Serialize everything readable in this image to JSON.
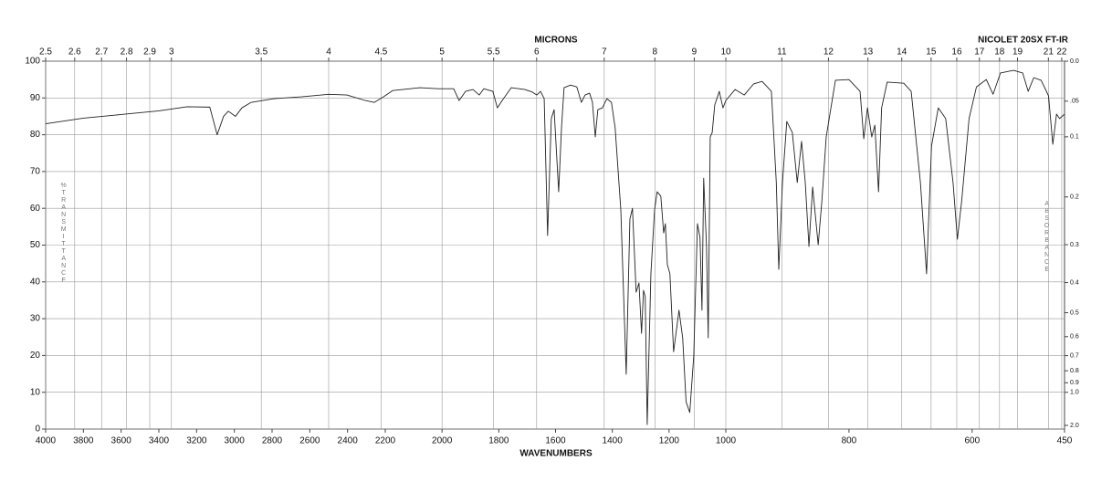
{
  "chart_data": {
    "type": "line",
    "title": "NICOLET 20SX FT-IR",
    "x_label": "WAVENUMBERS",
    "x2_label": "MICRONS",
    "y_label": "%TRANSMITTANCE",
    "y2_label": "ABSORBANCE",
    "color": "#222222",
    "xbreaks": [
      4000,
      2200,
      1000,
      450
    ],
    "xlim": [
      4000,
      450
    ],
    "xticks": [
      4000,
      3800,
      3600,
      3400,
      3200,
      3000,
      2800,
      2600,
      2400,
      2200,
      2000,
      1800,
      1600,
      1400,
      1200,
      1000,
      800,
      600,
      450
    ],
    "x2ticks": [
      2.5,
      2.6,
      2.7,
      2.8,
      2.9,
      3,
      3.5,
      4,
      4.5,
      5,
      5.5,
      6,
      7,
      8,
      9,
      10,
      11,
      12,
      13,
      14,
      15,
      16,
      17,
      18,
      19,
      21,
      22
    ],
    "ylim": [
      0,
      100
    ],
    "yticks": [
      0,
      10,
      20,
      30,
      40,
      50,
      60,
      70,
      80,
      90,
      100
    ],
    "y2ticks": [
      {
        "value": 0,
        "label": "0.0"
      },
      {
        "value": 0.05,
        "label": ".05"
      },
      0.1,
      0.2,
      0.3,
      0.4,
      0.5,
      0.6,
      0.7,
      0.8,
      0.9,
      {
        "value": 1,
        "label": "1.0"
      },
      {
        "value": 2,
        "label": "2.0"
      }
    ],
    "grid": true,
    "x": [
      4000,
      3800,
      3600,
      3400,
      3250,
      3130,
      3091,
      3057,
      3032,
      2994,
      2960,
      2911,
      2790,
      2645,
      2500,
      2403,
      2306,
      2258,
      2210,
      2174,
      2078,
      2013,
      1959,
      1940,
      1917,
      1891,
      1869,
      1853,
      1821,
      1805,
      1788,
      1756,
      1708,
      1682,
      1666,
      1653,
      1640,
      1628,
      1615,
      1605,
      1589,
      1579,
      1570,
      1547,
      1525,
      1509,
      1496,
      1480,
      1470,
      1460,
      1451,
      1435,
      1419,
      1403,
      1390,
      1370,
      1351,
      1338,
      1329,
      1316,
      1306,
      1297,
      1290,
      1284,
      1277,
      1264,
      1251,
      1242,
      1229,
      1219,
      1213,
      1206,
      1197,
      1184,
      1165,
      1152,
      1140,
      1127,
      1113,
      1100,
      1091,
      1084,
      1078,
      1068,
      1062,
      1055,
      1048,
      1039,
      1023,
      1010,
      1000,
      985,
      970,
      955,
      941,
      926,
      918,
      914,
      908,
      901,
      892,
      884,
      877,
      871,
      865,
      859,
      850,
      844,
      837,
      822,
      800,
      782,
      776,
      770,
      763,
      758,
      752,
      747,
      738,
      711,
      699,
      684,
      674,
      666,
      655,
      643,
      631,
      624,
      617,
      605,
      593,
      577,
      566,
      554,
      533,
      518,
      509,
      500,
      488,
      476,
      469,
      463,
      458,
      450
    ],
    "values": [
      83,
      84.5,
      85.5,
      86.5,
      87.6,
      87.5,
      80,
      85,
      86.4,
      85,
      87.3,
      88.8,
      89.8,
      90.3,
      91,
      90.8,
      89.3,
      88.8,
      90.3,
      92,
      92.8,
      92.5,
      92.5,
      89.3,
      91.8,
      92.3,
      90.8,
      92.5,
      91.8,
      87.3,
      89.3,
      92.8,
      92.3,
      91.6,
      90.8,
      91.8,
      89.8,
      52.6,
      84.4,
      86.8,
      64.5,
      81.9,
      92.8,
      93.5,
      93,
      88.8,
      90.8,
      91.3,
      88.8,
      79.4,
      86.8,
      87.3,
      89.8,
      88.8,
      81.9,
      59.6,
      14.9,
      57.1,
      60,
      37.2,
      39.7,
      26,
      37.7,
      36,
      1.2,
      42.2,
      59.6,
      64.5,
      63.3,
      53.3,
      55.8,
      44.7,
      42.2,
      21,
      32.3,
      24.8,
      7.4,
      4.5,
      19.9,
      55.8,
      52.1,
      32.3,
      68.2,
      49.6,
      24.8,
      79.4,
      80.6,
      88.1,
      91.8,
      87.3,
      89.3,
      92.3,
      90.8,
      93.8,
      94.5,
      91.8,
      67,
      43.4,
      67,
      83.6,
      80.6,
      67,
      78.2,
      67,
      49.6,
      65.8,
      50.1,
      62,
      79.4,
      94.8,
      95,
      91.8,
      78.9,
      87.3,
      79.4,
      82.6,
      64.5,
      87.3,
      94.3,
      94,
      91.8,
      67,
      42.2,
      76.9,
      87.3,
      84.4,
      67,
      51.6,
      62,
      84.4,
      93,
      95,
      91,
      96.8,
      97.5,
      96.8,
      91.8,
      95.5,
      94.8,
      90.6,
      77.4,
      85.6,
      84.4,
      85.6
    ]
  }
}
